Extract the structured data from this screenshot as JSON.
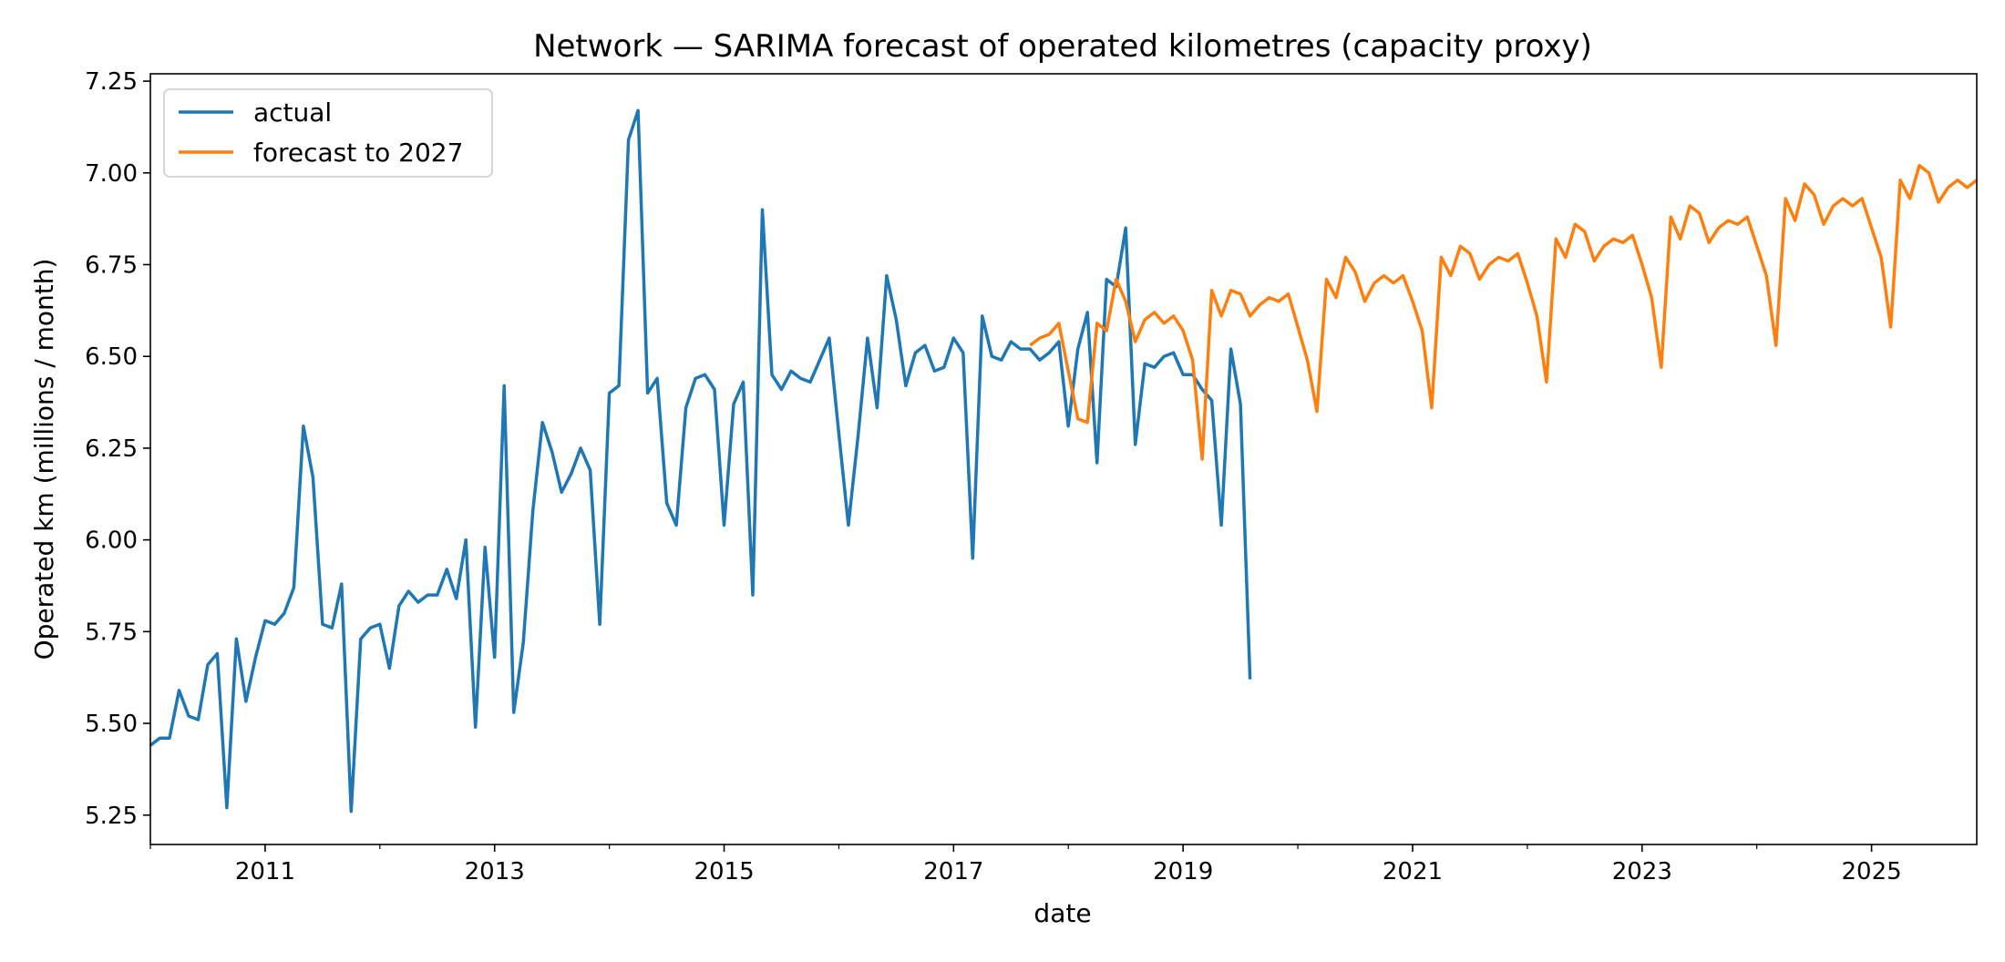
{
  "chart_data": {
    "type": "line",
    "title": "Network — SARIMA forecast of operated kilometres (capacity proxy)",
    "xlabel": "date",
    "ylabel": "Operated km (millions / month)",
    "xlim": [
      "2010-01",
      "2025-12"
    ],
    "ylim": [
      5.17,
      7.27
    ],
    "x_ticks": [
      "2011",
      "2013",
      "2015",
      "2017",
      "2019",
      "2021",
      "2023",
      "2025"
    ],
    "x_minor_ticks": [
      "2010",
      "2012",
      "2014",
      "2016",
      "2018",
      "2020",
      "2022",
      "2024"
    ],
    "y_ticks": [
      "5.25",
      "5.50",
      "5.75",
      "6.00",
      "6.25",
      "6.50",
      "6.75",
      "7.00",
      "7.25"
    ],
    "grid": false,
    "legend_position": "top-left",
    "series": [
      {
        "name": "actual",
        "color": "#1f77b4",
        "start": "2010-01",
        "values": [
          5.44,
          5.46,
          5.46,
          5.59,
          5.52,
          5.51,
          5.66,
          5.69,
          5.27,
          5.73,
          5.56,
          5.68,
          5.78,
          5.77,
          5.8,
          5.87,
          6.31,
          6.17,
          5.77,
          5.76,
          5.88,
          5.26,
          5.73,
          5.76,
          5.77,
          5.65,
          5.82,
          5.86,
          5.83,
          5.85,
          5.85,
          5.92,
          5.84,
          6.0,
          5.49,
          5.98,
          5.68,
          6.42,
          5.53,
          5.72,
          6.08,
          6.32,
          6.24,
          6.13,
          6.18,
          6.25,
          6.19,
          5.77,
          6.4,
          6.42,
          7.09,
          7.17,
          6.4,
          6.44,
          6.1,
          6.04,
          6.36,
          6.44,
          6.45,
          6.41,
          6.04,
          6.37,
          6.43,
          5.85,
          6.9,
          6.45,
          6.41,
          6.46,
          6.44,
          6.43,
          6.49,
          6.55,
          6.29,
          6.04,
          6.28,
          6.55,
          6.36,
          6.72,
          6.6,
          6.42,
          6.51,
          6.53,
          6.46,
          6.47,
          6.55,
          6.51,
          5.95,
          6.61,
          6.5,
          6.49,
          6.54,
          6.52,
          6.52,
          6.49,
          6.51,
          6.54,
          6.31,
          6.52,
          6.62,
          6.21,
          6.71,
          6.69,
          6.85,
          6.26,
          6.48,
          6.47,
          6.5,
          6.51,
          6.45,
          6.45,
          6.41,
          6.38,
          6.04,
          6.52,
          6.37,
          5.62
        ]
      },
      {
        "name": "forecast to 2027",
        "color": "#ff7f0e",
        "start": "2017-09",
        "values": [
          6.53,
          6.55,
          6.56,
          6.59,
          6.46,
          6.33,
          6.32,
          6.59,
          6.57,
          6.71,
          6.65,
          6.54,
          6.6,
          6.62,
          6.59,
          6.61,
          6.57,
          6.49,
          6.22,
          6.68,
          6.61,
          6.68,
          6.67,
          6.61,
          6.64,
          6.66,
          6.65,
          6.67,
          6.58,
          6.49,
          6.35,
          6.71,
          6.66,
          6.77,
          6.73,
          6.65,
          6.7,
          6.72,
          6.7,
          6.72,
          6.65,
          6.57,
          6.36,
          6.77,
          6.72,
          6.8,
          6.78,
          6.71,
          6.75,
          6.77,
          6.76,
          6.78,
          6.7,
          6.61,
          6.43,
          6.82,
          6.77,
          6.86,
          6.84,
          6.76,
          6.8,
          6.82,
          6.81,
          6.83,
          6.75,
          6.66,
          6.47,
          6.88,
          6.82,
          6.91,
          6.89,
          6.81,
          6.85,
          6.87,
          6.86,
          6.88,
          6.8,
          6.72,
          6.53,
          6.93,
          6.87,
          6.97,
          6.94,
          6.86,
          6.91,
          6.93,
          6.91,
          6.93,
          6.85,
          6.77,
          6.58,
          6.98,
          6.93,
          7.02,
          7.0,
          6.92,
          6.96,
          6.98,
          6.96,
          6.98
        ]
      }
    ]
  }
}
